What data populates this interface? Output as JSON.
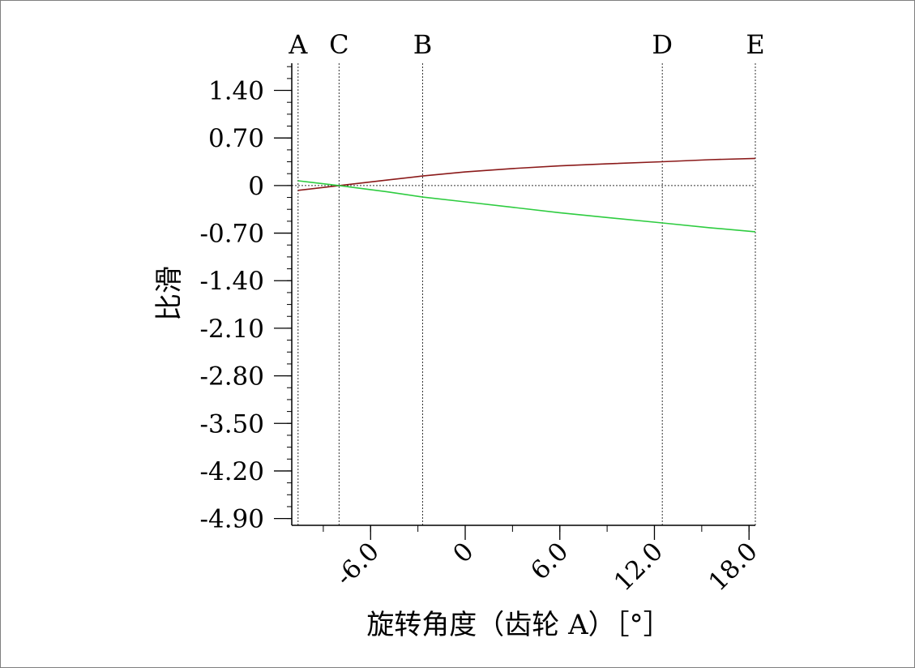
{
  "chart_data": {
    "type": "line",
    "xlabel": "旋转角度（齿轮 A）［°］",
    "ylabel": "比滑",
    "xlim": [
      -11.0,
      18.4
    ],
    "ylim": [
      -5.0,
      1.8
    ],
    "x_ticks": [
      {
        "value": -6.0,
        "label": "-6.0"
      },
      {
        "value": 0,
        "label": "0"
      },
      {
        "value": 6.0,
        "label": "6.0"
      },
      {
        "value": 12.0,
        "label": "12.0"
      },
      {
        "value": 18.0,
        "label": "18.0"
      }
    ],
    "y_ticks": [
      {
        "value": 1.4,
        "label": "1.40"
      },
      {
        "value": 0.7,
        "label": "0.70"
      },
      {
        "value": 0,
        "label": "0"
      },
      {
        "value": -0.7,
        "label": "-0.70"
      },
      {
        "value": -1.4,
        "label": "-1.40"
      },
      {
        "value": -2.1,
        "label": "-2.10"
      },
      {
        "value": -2.8,
        "label": "-2.80"
      },
      {
        "value": -3.5,
        "label": "-3.50"
      },
      {
        "value": -4.2,
        "label": "-4.20"
      },
      {
        "value": -4.9,
        "label": "-4.90"
      }
    ],
    "markers": [
      {
        "label": "A",
        "x": -10.6
      },
      {
        "label": "C",
        "x": -8.0
      },
      {
        "label": "B",
        "x": -2.7
      },
      {
        "label": "D",
        "x": 12.5
      },
      {
        "label": "E",
        "x": 18.4
      }
    ],
    "series": [
      {
        "color": "#8b1a1a",
        "x": [
          -10.6,
          -8.0,
          -5.0,
          -2.7,
          0,
          3.0,
          6.0,
          9.0,
          12.5,
          15.5,
          18.4
        ],
        "y": [
          -0.07,
          0.0,
          0.08,
          0.14,
          0.2,
          0.25,
          0.29,
          0.32,
          0.35,
          0.38,
          0.4
        ]
      },
      {
        "color": "#2ecc40",
        "x": [
          -10.6,
          -8.0,
          -5.0,
          -2.7,
          0,
          3.0,
          6.0,
          9.0,
          12.5,
          15.5,
          18.4
        ],
        "y": [
          0.07,
          0.0,
          -0.09,
          -0.17,
          -0.24,
          -0.32,
          -0.4,
          -0.47,
          -0.55,
          -0.62,
          -0.68
        ]
      }
    ]
  }
}
